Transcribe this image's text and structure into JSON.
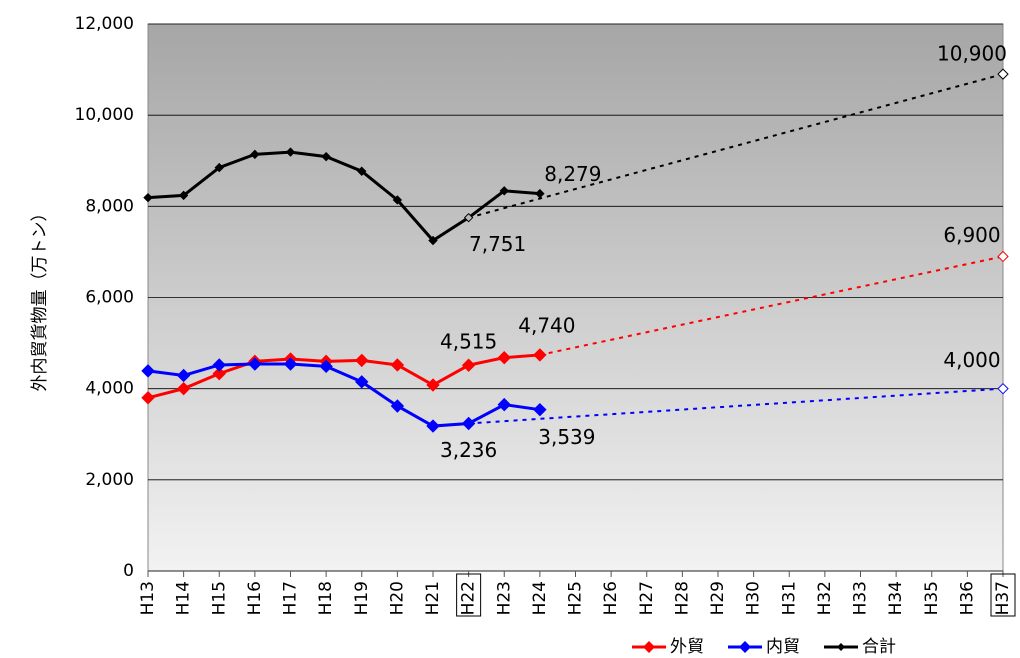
{
  "chart_data": {
    "type": "line",
    "y_label": "外内貿貨物量（万トン）",
    "categories": [
      "H13",
      "H14",
      "H15",
      "H16",
      "H17",
      "H18",
      "H19",
      "H20",
      "H21",
      "H22",
      "H23",
      "H24",
      "H25",
      "H26",
      "H27",
      "H28",
      "H29",
      "H30",
      "H31",
      "H32",
      "H33",
      "H34",
      "H35",
      "H36",
      "H37"
    ],
    "boxed_categories": [
      "H22",
      "H37"
    ],
    "ylim": [
      0,
      12000
    ],
    "yticks": [
      0,
      {
        "value": 2000,
        "label": "2,000"
      },
      {
        "value": 4000,
        "label": "4,000"
      },
      {
        "value": 6000,
        "label": "6,000"
      },
      {
        "value": 8000,
        "label": "8,000"
      },
      {
        "value": 10000,
        "label": "10,000"
      },
      {
        "value": 12000,
        "label": "12,000"
      }
    ],
    "grid": true,
    "legend": "bottom-right",
    "series": [
      {
        "name": "外貿",
        "color": "#ff0000",
        "values": [
          3800,
          4000,
          4330,
          4600,
          4650,
          4600,
          4620,
          4520,
          4080,
          4515,
          4680,
          4740,
          null,
          null,
          null,
          null,
          null,
          null,
          null,
          null,
          null,
          null,
          null,
          null,
          null
        ],
        "value_labels": [
          null,
          null,
          null,
          null,
          null,
          null,
          null,
          null,
          null,
          "4,515",
          null,
          "4,740",
          null,
          null,
          null,
          null,
          null,
          null,
          null,
          null,
          null,
          null,
          null,
          null,
          null
        ],
        "projection_values": [
          null,
          null,
          null,
          null,
          null,
          null,
          null,
          null,
          null,
          null,
          null,
          4740,
          null,
          null,
          null,
          null,
          null,
          null,
          null,
          null,
          null,
          null,
          null,
          null,
          6900
        ],
        "projection_labels": [
          null,
          null,
          null,
          null,
          null,
          null,
          null,
          null,
          null,
          null,
          null,
          null,
          null,
          null,
          null,
          null,
          null,
          null,
          null,
          null,
          null,
          null,
          null,
          null,
          "6,900"
        ]
      },
      {
        "name": "内貿",
        "color": "#0000ff",
        "values": [
          4390,
          4290,
          4520,
          4540,
          4540,
          4490,
          4150,
          3620,
          3180,
          3236,
          3650,
          3539,
          null,
          null,
          null,
          null,
          null,
          null,
          null,
          null,
          null,
          null,
          null,
          null,
          null
        ],
        "value_labels": [
          null,
          null,
          null,
          null,
          null,
          null,
          null,
          null,
          null,
          "3,236",
          null,
          "3,539",
          null,
          null,
          null,
          null,
          null,
          null,
          null,
          null,
          null,
          null,
          null,
          null,
          null
        ],
        "projection_values": [
          null,
          null,
          null,
          null,
          null,
          null,
          null,
          null,
          null,
          3236,
          null,
          null,
          null,
          null,
          null,
          null,
          null,
          null,
          null,
          null,
          null,
          null,
          null,
          null,
          4000
        ],
        "projection_labels": [
          null,
          null,
          null,
          null,
          null,
          null,
          null,
          null,
          null,
          null,
          null,
          null,
          null,
          null,
          null,
          null,
          null,
          null,
          null,
          null,
          null,
          null,
          null,
          null,
          "4,000"
        ]
      },
      {
        "name": "合計",
        "color": "#000000",
        "values": [
          8190,
          8240,
          8850,
          9140,
          9190,
          9090,
          8770,
          8140,
          7250,
          7751,
          8340,
          8279,
          null,
          null,
          null,
          null,
          null,
          null,
          null,
          null,
          null,
          null,
          null,
          null,
          null
        ],
        "value_labels": [
          null,
          null,
          null,
          null,
          null,
          null,
          null,
          null,
          null,
          "7,751",
          null,
          "8,279",
          null,
          null,
          null,
          null,
          null,
          null,
          null,
          null,
          null,
          null,
          null,
          null,
          null
        ],
        "projection_values": [
          null,
          null,
          null,
          null,
          null,
          null,
          null,
          null,
          null,
          7751,
          null,
          null,
          null,
          null,
          null,
          null,
          null,
          null,
          null,
          null,
          null,
          null,
          null,
          null,
          10900
        ],
        "projection_labels": [
          null,
          null,
          null,
          null,
          null,
          null,
          null,
          null,
          null,
          null,
          null,
          null,
          null,
          null,
          null,
          null,
          null,
          null,
          null,
          null,
          null,
          null,
          null,
          null,
          "10,900"
        ]
      }
    ]
  }
}
